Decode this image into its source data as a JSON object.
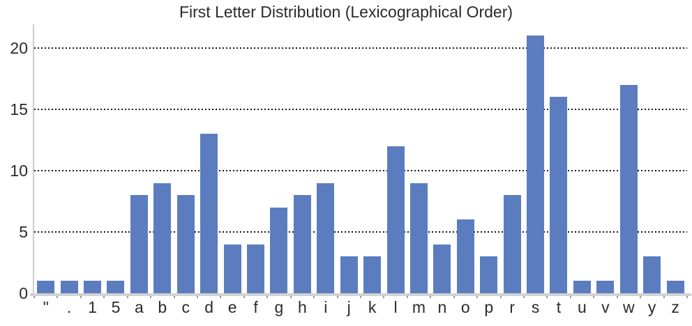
{
  "colors": {
    "bar": "#5b7dbf",
    "spine": "#cccccc",
    "grid": "#141414",
    "text": "#2b2b2b",
    "tick": "#999999"
  },
  "chart_data": {
    "type": "bar",
    "title": "First Letter Distribution (Lexicographical Order)",
    "xlabel": "",
    "ylabel": "",
    "categories": [
      "\"",
      ".",
      "1",
      "5",
      "a",
      "b",
      "c",
      "d",
      "e",
      "f",
      "g",
      "h",
      "i",
      "j",
      "k",
      "l",
      "m",
      "n",
      "o",
      "p",
      "r",
      "s",
      "t",
      "u",
      "v",
      "w",
      "y",
      "z"
    ],
    "values": [
      1,
      1,
      1,
      1,
      8,
      9,
      8,
      13,
      4,
      4,
      7,
      8,
      9,
      3,
      3,
      12,
      9,
      4,
      6,
      3,
      8,
      21,
      16,
      1,
      1,
      17,
      3,
      1
    ],
    "ylim": [
      0,
      21.9
    ],
    "yticks": [
      0,
      5,
      10,
      15,
      20
    ],
    "grid": "horizontal dotted black lines at y ticks",
    "legend": "none",
    "bar_color": "#5b7dbf"
  }
}
